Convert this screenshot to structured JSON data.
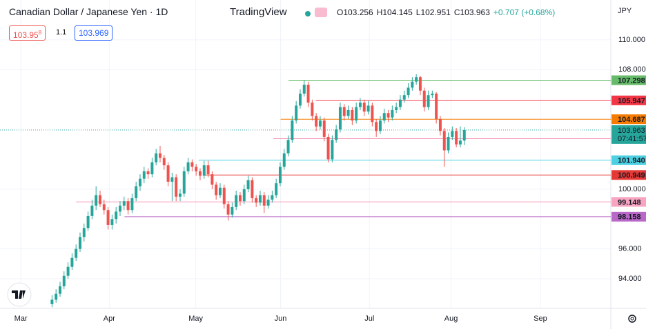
{
  "header": {
    "symbol": "Canadian Dollar / Japanese Yen · 1D",
    "brand": "TradingView",
    "ohlc": [
      "O103.256",
      "H104.145",
      "L102.951",
      "C103.963",
      "+0.707 (+0.68%)"
    ],
    "sell": "103.95",
    "sell_pip": "8",
    "spread": "1.1",
    "buy": "103.969"
  },
  "chart_data": {
    "type": "candlestick",
    "currency": "JPY",
    "up_color": "#26a69a",
    "down_color": "#ef5350",
    "ylim": [
      92.02,
      112.67
    ],
    "xlim": [
      -13,
      139.6
    ],
    "yticks": [
      {
        "value": 94,
        "label": "94.000"
      },
      {
        "value": 96,
        "label": "96.000"
      },
      {
        "value": 100,
        "label": "100.000"
      },
      {
        "value": 108,
        "label": "108.000"
      },
      {
        "value": 110,
        "label": "110.000"
      }
    ],
    "xticks": [
      {
        "value": -7.8,
        "label": "Mar"
      },
      {
        "value": 14.3,
        "label": "Apr"
      },
      {
        "value": 35.9,
        "label": "May"
      },
      {
        "value": 57.1,
        "label": "Jun"
      },
      {
        "value": 79.3,
        "label": "Jul"
      },
      {
        "value": 99.7,
        "label": "Aug"
      },
      {
        "value": 122,
        "label": "Sep"
      }
    ],
    "candles": [
      [
        92.3,
        92.9,
        92.1,
        92.6
      ],
      [
        92.6,
        93.3,
        92.4,
        93.0
      ],
      [
        93.0,
        93.8,
        92.8,
        93.5
      ],
      [
        93.5,
        94.5,
        93.3,
        94.2
      ],
      [
        94.2,
        95.1,
        94.0,
        94.8
      ],
      [
        94.8,
        95.7,
        94.6,
        95.4
      ],
      [
        95.4,
        96.3,
        95.2,
        96.0
      ],
      [
        96.0,
        97.1,
        95.8,
        96.8
      ],
      [
        96.8,
        97.7,
        96.5,
        97.4
      ],
      [
        97.4,
        98.5,
        97.2,
        98.2
      ],
      [
        98.2,
        99.3,
        98.0,
        98.9
      ],
      [
        98.9,
        100.2,
        98.6,
        99.6
      ],
      [
        99.6,
        99.9,
        98.8,
        99.0
      ],
      [
        99.0,
        99.3,
        98.3,
        98.6
      ],
      [
        98.6,
        98.8,
        97.3,
        97.6
      ],
      [
        97.6,
        98.3,
        97.3,
        98.0
      ],
      [
        98.0,
        98.8,
        97.7,
        98.5
      ],
      [
        98.5,
        99.2,
        98.2,
        98.9
      ],
      [
        98.9,
        99.5,
        98.6,
        99.2
      ],
      [
        99.2,
        99.4,
        98.3,
        98.6
      ],
      [
        98.6,
        99.7,
        98.4,
        99.4
      ],
      [
        99.4,
        100.5,
        99.2,
        100.2
      ],
      [
        100.2,
        101.0,
        99.9,
        100.7
      ],
      [
        100.7,
        101.5,
        100.4,
        101.2
      ],
      [
        101.2,
        101.4,
        100.7,
        101.0
      ],
      [
        101.0,
        102.1,
        100.8,
        101.8
      ],
      [
        101.8,
        102.7,
        101.6,
        102.4
      ],
      [
        102.4,
        102.9,
        101.8,
        102.1
      ],
      [
        102.1,
        102.3,
        101.3,
        101.6
      ],
      [
        101.6,
        101.8,
        100.2,
        100.5
      ],
      [
        100.5,
        101.1,
        99.2,
        100.8
      ],
      [
        100.8,
        101.0,
        99.2,
        99.5
      ],
      [
        99.5,
        100.0,
        99.2,
        99.7
      ],
      [
        99.7,
        101.5,
        99.5,
        101.2
      ],
      [
        101.2,
        102.1,
        101.0,
        101.8
      ],
      [
        101.8,
        102.0,
        101.2,
        101.5
      ],
      [
        101.5,
        101.7,
        100.9,
        101.2
      ],
      [
        101.2,
        101.4,
        100.6,
        100.9
      ],
      [
        100.9,
        101.9,
        100.7,
        101.6
      ],
      [
        101.6,
        101.9,
        100.8,
        101.0
      ],
      [
        101.0,
        101.2,
        100.0,
        100.3
      ],
      [
        100.3,
        100.5,
        99.3,
        99.6
      ],
      [
        99.6,
        100.4,
        99.4,
        100.1
      ],
      [
        100.1,
        100.3,
        98.7,
        99.0
      ],
      [
        99.0,
        99.2,
        97.9,
        98.3
      ],
      [
        98.3,
        99.1,
        98.1,
        98.8
      ],
      [
        98.8,
        99.9,
        98.6,
        99.6
      ],
      [
        99.6,
        99.8,
        98.9,
        99.2
      ],
      [
        99.2,
        100.3,
        99.0,
        100.0
      ],
      [
        100.0,
        100.9,
        99.8,
        100.6
      ],
      [
        100.6,
        100.8,
        99.1,
        99.4
      ],
      [
        99.4,
        99.6,
        98.8,
        99.1
      ],
      [
        99.1,
        99.9,
        98.9,
        99.6
      ],
      [
        99.6,
        99.8,
        98.4,
        98.9
      ],
      [
        98.9,
        99.6,
        98.7,
        99.3
      ],
      [
        99.3,
        99.9,
        99.1,
        99.6
      ],
      [
        99.6,
        100.7,
        99.4,
        100.4
      ],
      [
        100.4,
        101.8,
        100.2,
        101.5
      ],
      [
        101.5,
        102.7,
        101.3,
        102.4
      ],
      [
        102.4,
        103.6,
        102.2,
        103.3
      ],
      [
        103.3,
        104.9,
        103.1,
        104.6
      ],
      [
        104.6,
        105.9,
        104.4,
        105.6
      ],
      [
        105.6,
        106.7,
        105.4,
        106.4
      ],
      [
        106.4,
        107.3,
        106.2,
        107.0
      ],
      [
        107.0,
        107.2,
        105.5,
        105.8
      ],
      [
        105.8,
        106.0,
        104.6,
        104.9
      ],
      [
        104.9,
        105.1,
        103.9,
        104.2
      ],
      [
        104.2,
        104.9,
        104.0,
        104.6
      ],
      [
        104.6,
        104.8,
        103.2,
        103.5
      ],
      [
        103.5,
        103.7,
        101.8,
        102.0
      ],
      [
        102.0,
        103.6,
        101.8,
        103.3
      ],
      [
        103.3,
        104.3,
        103.1,
        104.0
      ],
      [
        104.0,
        105.8,
        103.8,
        105.5
      ],
      [
        105.5,
        105.7,
        104.6,
        104.9
      ],
      [
        104.9,
        105.6,
        104.7,
        105.3
      ],
      [
        105.3,
        105.5,
        104.3,
        104.6
      ],
      [
        104.6,
        105.8,
        104.4,
        105.5
      ],
      [
        105.5,
        106.1,
        105.3,
        105.8
      ],
      [
        105.8,
        106.0,
        104.9,
        105.2
      ],
      [
        105.2,
        105.9,
        105.0,
        105.6
      ],
      [
        105.6,
        105.8,
        104.2,
        104.5
      ],
      [
        104.5,
        104.7,
        103.5,
        103.9
      ],
      [
        103.9,
        104.9,
        103.7,
        104.6
      ],
      [
        104.6,
        105.4,
        104.4,
        105.1
      ],
      [
        105.1,
        105.3,
        104.5,
        104.8
      ],
      [
        104.8,
        105.6,
        104.6,
        105.3
      ],
      [
        105.3,
        105.8,
        105.1,
        105.5
      ],
      [
        105.5,
        106.3,
        105.3,
        106.0
      ],
      [
        106.0,
        106.6,
        105.8,
        106.3
      ],
      [
        106.3,
        107.1,
        106.1,
        106.8
      ],
      [
        106.8,
        107.5,
        106.6,
        107.2
      ],
      [
        107.2,
        107.7,
        107.0,
        107.5
      ],
      [
        107.5,
        107.6,
        106.3,
        106.6
      ],
      [
        106.6,
        106.8,
        105.2,
        105.5
      ],
      [
        105.5,
        106.6,
        105.3,
        106.3
      ],
      [
        106.3,
        106.6,
        106.1,
        106.4
      ],
      [
        106.4,
        106.5,
        104.4,
        104.7
      ],
      [
        104.7,
        104.9,
        103.6,
        103.9
      ],
      [
        103.9,
        104.1,
        101.5,
        102.6
      ],
      [
        102.6,
        103.8,
        102.4,
        103.5
      ],
      [
        103.5,
        104.2,
        103.3,
        103.9
      ],
      [
        103.9,
        104.1,
        102.8,
        103.0
      ],
      [
        103.0,
        104.2,
        102.8,
        103.256
      ],
      [
        103.256,
        104.145,
        102.951,
        103.963
      ]
    ],
    "levels": [
      {
        "value": 107.298,
        "color": "#4caf50",
        "label_color": "#66bb6a",
        "text_color": "#131722",
        "from": 59.1
      },
      {
        "value": 105.947,
        "color": "#f23645",
        "label_color": "#f23645",
        "text_color": "#ffffff",
        "from": 65.9
      },
      {
        "value": 104.687,
        "color": "#f57c00",
        "label_color": "#f57c00",
        "text_color": "#ffffff",
        "from": 57.1
      },
      {
        "value": 103.381,
        "color": "#f48fb1",
        "label_color": "#f8a5c2",
        "text_color": "#131722",
        "from": 55.3
      },
      {
        "value": 101.94,
        "label": "101.940",
        "color": "#4dd0e1",
        "label_color": "#4dd0e1",
        "text_color": "#131722",
        "from": 36.6
      },
      {
        "value": 100.949,
        "color": "#e53935",
        "label_color": "#e53935",
        "text_color": "#ffffff",
        "from": 37.9
      },
      {
        "value": 99.148,
        "color": "#f48fb1",
        "label_color": "#f8a5c2",
        "text_color": "#131722",
        "from": 6.0
      },
      {
        "value": 98.158,
        "color": "#ba68c8",
        "label_color": "#ba68c8",
        "text_color": "#ffffff",
        "from": 18.1
      }
    ],
    "current": {
      "value": 103.963,
      "countdown": "07:41:57",
      "color": "#26a69a"
    }
  }
}
